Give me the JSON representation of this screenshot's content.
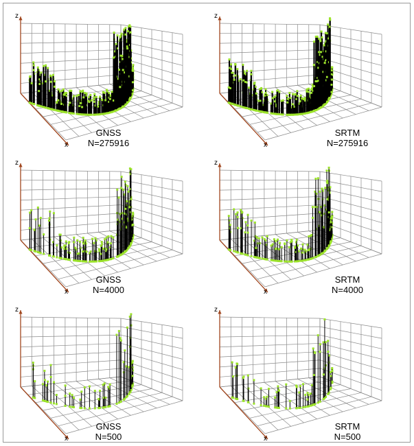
{
  "panels": [
    {
      "source": "GNSS",
      "count": "N=275916",
      "z_axis": "z",
      "x_axis": "x"
    },
    {
      "source": "SRTM",
      "count": "N=275916",
      "z_axis": "z",
      "x_axis": "x"
    },
    {
      "source": "GNSS",
      "count": "N=4000",
      "z_axis": "z",
      "x_axis": "x"
    },
    {
      "source": "SRTM",
      "count": "N=4000",
      "z_axis": "z",
      "x_axis": "x"
    },
    {
      "source": "GNSS",
      "count": "N=500",
      "z_axis": "z",
      "x_axis": "x"
    },
    {
      "source": "SRTM",
      "count": "N=500",
      "z_axis": "z",
      "x_axis": "x"
    }
  ]
}
